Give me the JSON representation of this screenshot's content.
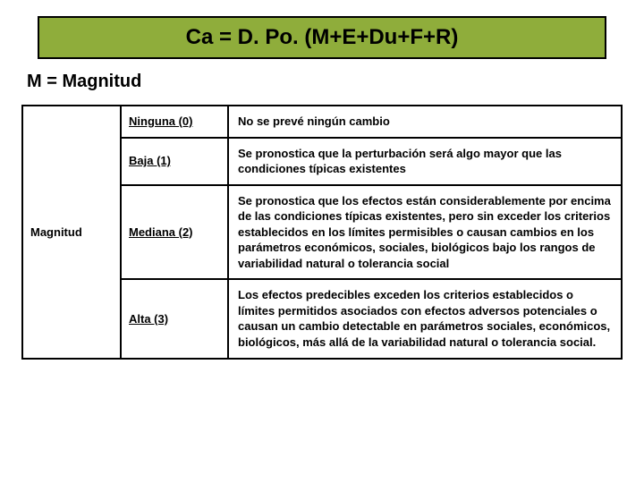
{
  "formula": "Ca = D. Po. (M+E+Du+F+R)",
  "subtitle": "M = Magnitud",
  "category": "Magnitud",
  "rows": [
    {
      "level": "Ninguna (0)",
      "desc": "No se prevé ningún cambio"
    },
    {
      "level": "Baja (1)",
      "desc": "Se pronostica que la perturbación será algo mayor que las condiciones típicas existentes"
    },
    {
      "level": "Mediana (2)",
      "desc": "Se pronostica que los efectos están considerablemente por encima de las condiciones típicas existentes, pero sin exceder los criterios establecidos en los límites permisibles o causan cambios en los parámetros económicos, sociales, biológicos bajo los rangos de variabilidad natural o tolerancia social"
    },
    {
      "level": "Alta (3)",
      "desc": "Los efectos predecibles exceden los criterios establecidos o límites permitidos asociados con efectos adversos potenciales o causan un cambio detectable en parámetros sociales, económicos, biológicos, más allá de la variabilidad natural o tolerancia social."
    }
  ]
}
